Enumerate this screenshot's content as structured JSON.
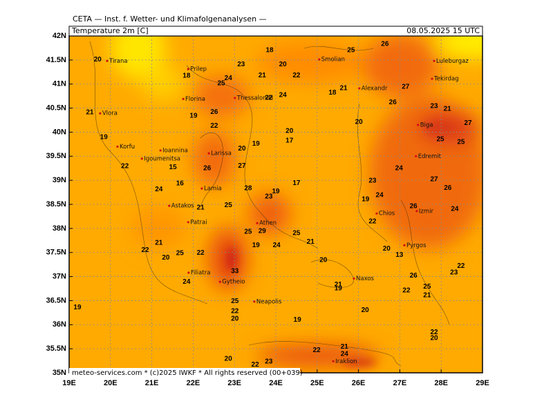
{
  "map": {
    "header": "CETA — Inst. f. Wetter- und Klimafolgenanalysen —",
    "field": "Temperature 2m [C]",
    "valid_time": "08.05.2025 15 UTC",
    "footer": "meteo-services.com * (c)2025 IWKF * All rights reserved (00+039)",
    "lon_range": [
      19,
      29
    ],
    "lat_range": [
      35,
      42
    ],
    "lon_ticks": [
      {
        "value": 19,
        "label": "19E"
      },
      {
        "value": 20,
        "label": "20E"
      },
      {
        "value": 21,
        "label": "21E"
      },
      {
        "value": 22,
        "label": "22E"
      },
      {
        "value": 23,
        "label": "23E"
      },
      {
        "value": 24,
        "label": "24E"
      },
      {
        "value": 25,
        "label": "25E"
      },
      {
        "value": 26,
        "label": "26E"
      },
      {
        "value": 27,
        "label": "27E"
      },
      {
        "value": 28,
        "label": "28E"
      },
      {
        "value": 29,
        "label": "29E"
      }
    ],
    "lat_ticks": [
      {
        "value": 35,
        "label": "35N"
      },
      {
        "value": 35.5,
        "label": "35.5N"
      },
      {
        "value": 36,
        "label": "36N"
      },
      {
        "value": 36.5,
        "label": "36.5N"
      },
      {
        "value": 37,
        "label": "37N"
      },
      {
        "value": 37.5,
        "label": "37.5N"
      },
      {
        "value": 38,
        "label": "38N"
      },
      {
        "value": 38.5,
        "label": "38.5N"
      },
      {
        "value": 39,
        "label": "39N"
      },
      {
        "value": 39.5,
        "label": "39.5N"
      },
      {
        "value": 40,
        "label": "40N"
      },
      {
        "value": 40.5,
        "label": "40.5N"
      },
      {
        "value": 41,
        "label": "41N"
      },
      {
        "value": 41.5,
        "label": "41.5N"
      },
      {
        "value": 42,
        "label": "42N"
      }
    ],
    "cities": [
      {
        "name": "Tirana",
        "lon": 19.92,
        "lat": 41.48
      },
      {
        "name": "Prilep",
        "lon": 21.88,
        "lat": 41.31
      },
      {
        "name": "Smolian",
        "lon": 25.05,
        "lat": 41.51
      },
      {
        "name": "Luleburgaz",
        "lon": 27.83,
        "lat": 41.48
      },
      {
        "name": "Tekirdag",
        "lon": 27.78,
        "lat": 41.11
      },
      {
        "name": "Alexandr",
        "lon": 26.02,
        "lat": 40.91
      },
      {
        "name": "Florina",
        "lon": 21.76,
        "lat": 40.69
      },
      {
        "name": "Thessaloniki",
        "lon": 23.01,
        "lat": 40.71
      },
      {
        "name": "Vlora",
        "lon": 19.75,
        "lat": 40.39
      },
      {
        "name": "Biga",
        "lon": 27.44,
        "lat": 40.15
      },
      {
        "name": "Korfu",
        "lon": 20.17,
        "lat": 39.7
      },
      {
        "name": "Ioannina",
        "lon": 21.21,
        "lat": 39.62
      },
      {
        "name": "Larissa",
        "lon": 22.38,
        "lat": 39.56
      },
      {
        "name": "Igoumenitsa",
        "lon": 20.76,
        "lat": 39.45
      },
      {
        "name": "Edremit",
        "lon": 27.39,
        "lat": 39.5
      },
      {
        "name": "Lamia",
        "lon": 22.21,
        "lat": 38.83
      },
      {
        "name": "Astakos",
        "lon": 21.42,
        "lat": 38.47
      },
      {
        "name": "Chios",
        "lon": 26.44,
        "lat": 38.31
      },
      {
        "name": "Izmir",
        "lon": 27.41,
        "lat": 38.36
      },
      {
        "name": "Patrai",
        "lon": 21.88,
        "lat": 38.13
      },
      {
        "name": "Athen",
        "lon": 23.55,
        "lat": 38.11
      },
      {
        "name": "Pyrgos",
        "lon": 27.11,
        "lat": 37.65
      },
      {
        "name": "Filiatra",
        "lon": 21.89,
        "lat": 37.08
      },
      {
        "name": "Naxos",
        "lon": 25.89,
        "lat": 36.96
      },
      {
        "name": "Gytheio",
        "lon": 22.65,
        "lat": 36.89
      },
      {
        "name": "Neapolis",
        "lon": 23.48,
        "lat": 36.48
      },
      {
        "name": "Iraklion",
        "lon": 25.39,
        "lat": 35.24
      }
    ],
    "contour_labels": [
      {
        "value": 20,
        "lon": 19.69,
        "lat": 41.51
      },
      {
        "value": 18,
        "lon": 21.84,
        "lat": 41.17
      },
      {
        "value": 23,
        "lon": 23.16,
        "lat": 41.41
      },
      {
        "value": 24,
        "lon": 22.85,
        "lat": 41.12
      },
      {
        "value": 25,
        "lon": 22.68,
        "lat": 41.01
      },
      {
        "value": 21,
        "lon": 23.67,
        "lat": 41.18
      },
      {
        "value": 18,
        "lon": 23.85,
        "lat": 41.7
      },
      {
        "value": 20,
        "lon": 24.17,
        "lat": 41.41
      },
      {
        "value": 22,
        "lon": 24.5,
        "lat": 41.18
      },
      {
        "value": 25,
        "lon": 25.82,
        "lat": 41.7
      },
      {
        "value": 26,
        "lon": 26.64,
        "lat": 41.83
      },
      {
        "value": 22,
        "lon": 23.83,
        "lat": 40.71
      },
      {
        "value": 24,
        "lon": 24.17,
        "lat": 40.77
      },
      {
        "value": 18,
        "lon": 25.37,
        "lat": 40.82
      },
      {
        "value": 21,
        "lon": 25.64,
        "lat": 40.91
      },
      {
        "value": 27,
        "lon": 27.14,
        "lat": 40.94
      },
      {
        "value": 26,
        "lon": 26.83,
        "lat": 40.62
      },
      {
        "value": 23,
        "lon": 27.83,
        "lat": 40.54
      },
      {
        "value": 21,
        "lon": 28.15,
        "lat": 40.48
      },
      {
        "value": 27,
        "lon": 28.65,
        "lat": 40.19
      },
      {
        "value": 21,
        "lon": 19.5,
        "lat": 40.41
      },
      {
        "value": 19,
        "lon": 22.01,
        "lat": 40.34
      },
      {
        "value": 26,
        "lon": 22.51,
        "lat": 40.42
      },
      {
        "value": 22,
        "lon": 22.51,
        "lat": 40.13
      },
      {
        "value": 19,
        "lon": 19.84,
        "lat": 39.89
      },
      {
        "value": 20,
        "lon": 24.33,
        "lat": 40.02
      },
      {
        "value": 17,
        "lon": 24.33,
        "lat": 39.82
      },
      {
        "value": 20,
        "lon": 26.01,
        "lat": 40.21
      },
      {
        "value": 25,
        "lon": 27.98,
        "lat": 39.85
      },
      {
        "value": 25,
        "lon": 28.48,
        "lat": 39.79
      },
      {
        "value": 19,
        "lon": 23.52,
        "lat": 39.76
      },
      {
        "value": 20,
        "lon": 23.18,
        "lat": 39.66
      },
      {
        "value": 27,
        "lon": 23.18,
        "lat": 39.3
      },
      {
        "value": 15,
        "lon": 21.51,
        "lat": 39.27
      },
      {
        "value": 22,
        "lon": 20.35,
        "lat": 39.29
      },
      {
        "value": 24,
        "lon": 26.98,
        "lat": 39.25
      },
      {
        "value": 26,
        "lon": 22.34,
        "lat": 39.25
      },
      {
        "value": 16,
        "lon": 21.68,
        "lat": 38.93
      },
      {
        "value": 17,
        "lon": 24.5,
        "lat": 38.94
      },
      {
        "value": 23,
        "lon": 26.34,
        "lat": 38.99
      },
      {
        "value": 27,
        "lon": 27.83,
        "lat": 39.02
      },
      {
        "value": 26,
        "lon": 28.16,
        "lat": 38.84
      },
      {
        "value": 28,
        "lon": 23.33,
        "lat": 38.83
      },
      {
        "value": 19,
        "lon": 24.0,
        "lat": 38.77
      },
      {
        "value": 23,
        "lon": 23.83,
        "lat": 38.66
      },
      {
        "value": 24,
        "lon": 21.17,
        "lat": 38.81
      },
      {
        "value": 25,
        "lon": 22.85,
        "lat": 38.48
      },
      {
        "value": 21,
        "lon": 22.18,
        "lat": 38.43
      },
      {
        "value": 24,
        "lon": 26.51,
        "lat": 38.69
      },
      {
        "value": 19,
        "lon": 26.17,
        "lat": 38.6
      },
      {
        "value": 26,
        "lon": 27.33,
        "lat": 38.46
      },
      {
        "value": 24,
        "lon": 28.33,
        "lat": 38.4
      },
      {
        "value": 22,
        "lon": 26.34,
        "lat": 38.14
      },
      {
        "value": 25,
        "lon": 23.33,
        "lat": 37.93
      },
      {
        "value": 29,
        "lon": 23.67,
        "lat": 37.94
      },
      {
        "value": 25,
        "lon": 24.5,
        "lat": 37.9
      },
      {
        "value": 21,
        "lon": 24.84,
        "lat": 37.72
      },
      {
        "value": 19,
        "lon": 23.52,
        "lat": 37.65
      },
      {
        "value": 24,
        "lon": 24.02,
        "lat": 37.65
      },
      {
        "value": 22,
        "lon": 20.84,
        "lat": 37.55
      },
      {
        "value": 21,
        "lon": 21.17,
        "lat": 37.7
      },
      {
        "value": 20,
        "lon": 21.34,
        "lat": 37.39
      },
      {
        "value": 25,
        "lon": 21.68,
        "lat": 37.48
      },
      {
        "value": 22,
        "lon": 22.18,
        "lat": 37.49
      },
      {
        "value": 20,
        "lon": 25.15,
        "lat": 37.34
      },
      {
        "value": 20,
        "lon": 26.68,
        "lat": 37.58
      },
      {
        "value": 13,
        "lon": 26.99,
        "lat": 37.45
      },
      {
        "value": 22,
        "lon": 28.48,
        "lat": 37.22
      },
      {
        "value": 23,
        "lon": 28.31,
        "lat": 37.08
      },
      {
        "value": 33,
        "lon": 23.01,
        "lat": 37.11
      },
      {
        "value": 26,
        "lon": 27.33,
        "lat": 37.02
      },
      {
        "value": 25,
        "lon": 27.66,
        "lat": 36.79
      },
      {
        "value": 21,
        "lon": 27.66,
        "lat": 36.61
      },
      {
        "value": 24,
        "lon": 21.84,
        "lat": 36.89
      },
      {
        "value": 21,
        "lon": 25.51,
        "lat": 36.83
      },
      {
        "value": 19,
        "lon": 25.51,
        "lat": 36.75
      },
      {
        "value": 22,
        "lon": 27.16,
        "lat": 36.71
      },
      {
        "value": 19,
        "lon": 19.2,
        "lat": 36.36
      },
      {
        "value": 25,
        "lon": 23.01,
        "lat": 36.49
      },
      {
        "value": 22,
        "lon": 23.01,
        "lat": 36.28
      },
      {
        "value": 20,
        "lon": 23.01,
        "lat": 36.12
      },
      {
        "value": 19,
        "lon": 24.52,
        "lat": 36.1
      },
      {
        "value": 20,
        "lon": 26.16,
        "lat": 36.3
      },
      {
        "value": 22,
        "lon": 27.83,
        "lat": 35.84
      },
      {
        "value": 20,
        "lon": 27.83,
        "lat": 35.72
      },
      {
        "value": 21,
        "lon": 25.66,
        "lat": 35.54
      },
      {
        "value": 24,
        "lon": 25.66,
        "lat": 35.39
      },
      {
        "value": 22,
        "lon": 24.99,
        "lat": 35.47
      },
      {
        "value": 20,
        "lon": 22.85,
        "lat": 35.29
      },
      {
        "value": 23,
        "lon": 23.83,
        "lat": 35.23
      },
      {
        "value": 22,
        "lon": 23.5,
        "lat": 35.17
      }
    ]
  }
}
